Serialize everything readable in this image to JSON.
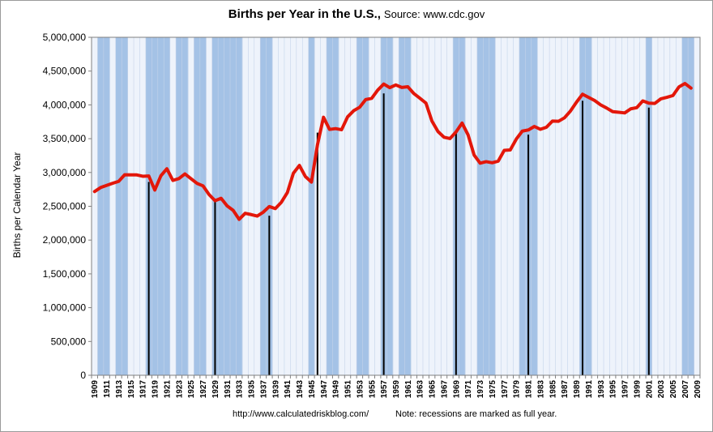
{
  "chart_data": {
    "type": "line",
    "title": "Births per Year in the U.S.,",
    "subtitle": "Source: www.cdc.gov",
    "ylabel": "Births per Calendar Year",
    "xlabel": "",
    "ylim": [
      0,
      5000000
    ],
    "yticks": [
      0,
      500000,
      1000000,
      1500000,
      2000000,
      2500000,
      3000000,
      3500000,
      4000000,
      4500000,
      5000000
    ],
    "ytick_labels": [
      "0",
      "500,000",
      "1,000,000",
      "1,500,000",
      "2,000,000",
      "2,500,000",
      "3,000,000",
      "3,500,000",
      "4,000,000",
      "4,500,000",
      "5,000,000"
    ],
    "x_range": [
      1909,
      2009
    ],
    "xticks": [
      "1909",
      "1911",
      "1913",
      "1915",
      "1917",
      "1919",
      "1921",
      "1923",
      "1925",
      "1927",
      "1929",
      "1931",
      "1933",
      "1935",
      "1937",
      "1939",
      "1941",
      "1943",
      "1945",
      "1947",
      "1949",
      "1951",
      "1953",
      "1955",
      "1957",
      "1959",
      "1961",
      "1963",
      "1965",
      "1967",
      "1969",
      "1971",
      "1973",
      "1975",
      "1977",
      "1979",
      "1981",
      "1983",
      "1985",
      "1987",
      "1989",
      "1991",
      "1993",
      "1995",
      "1997",
      "1999",
      "2001",
      "2003",
      "2005",
      "2007",
      "2009"
    ],
    "grid": "vertical",
    "legend": "none",
    "series": [
      {
        "color": "#e3170a",
        "x": [
          1909,
          1910,
          1911,
          1912,
          1913,
          1914,
          1915,
          1916,
          1917,
          1918,
          1919,
          1920,
          1921,
          1922,
          1923,
          1924,
          1925,
          1926,
          1927,
          1928,
          1929,
          1930,
          1931,
          1932,
          1933,
          1934,
          1935,
          1936,
          1937,
          1938,
          1939,
          1940,
          1941,
          1942,
          1943,
          1944,
          1945,
          1946,
          1947,
          1948,
          1949,
          1950,
          1951,
          1952,
          1953,
          1954,
          1955,
          1956,
          1957,
          1958,
          1959,
          1960,
          1961,
          1962,
          1963,
          1964,
          1965,
          1966,
          1967,
          1968,
          1969,
          1970,
          1971,
          1972,
          1973,
          1974,
          1975,
          1976,
          1977,
          1978,
          1979,
          1980,
          1981,
          1982,
          1983,
          1984,
          1985,
          1986,
          1987,
          1988,
          1989,
          1990,
          1991,
          1992,
          1993,
          1994,
          1995,
          1996,
          1997,
          1998,
          1999,
          2000,
          2001,
          2002,
          2003,
          2004,
          2005,
          2006,
          2007,
          2008
        ],
        "values": [
          2718000,
          2777000,
          2809000,
          2840000,
          2869000,
          2966000,
          2965000,
          2964000,
          2944000,
          2948000,
          2740000,
          2950000,
          3055000,
          2882000,
          2910000,
          2979000,
          2909000,
          2839000,
          2802000,
          2674000,
          2582000,
          2618000,
          2506000,
          2440000,
          2307000,
          2396000,
          2377000,
          2355000,
          2413000,
          2496000,
          2466000,
          2559000,
          2703000,
          2989000,
          3104000,
          2939000,
          2858000,
          3411000,
          3817000,
          3637000,
          3649000,
          3632000,
          3823000,
          3913000,
          3965000,
          4078000,
          4097000,
          4218000,
          4308000,
          4255000,
          4295000,
          4258000,
          4268000,
          4167000,
          4098000,
          4027000,
          3760000,
          3606000,
          3521000,
          3502000,
          3600000,
          3731000,
          3556000,
          3258000,
          3137000,
          3160000,
          3144000,
          3168000,
          3327000,
          3333000,
          3494000,
          3612000,
          3629000,
          3681000,
          3639000,
          3669000,
          3761000,
          3757000,
          3809000,
          3910000,
          4041000,
          4158000,
          4111000,
          4065000,
          4000000,
          3953000,
          3900000,
          3891000,
          3881000,
          3942000,
          3959000,
          4059000,
          4026000,
          4022000,
          4090000,
          4112000,
          4138000,
          4266000,
          4316000,
          4248000
        ]
      }
    ],
    "recession_years": [
      1910,
      1911,
      1913,
      1914,
      1918,
      1919,
      1920,
      1921,
      1923,
      1924,
      1926,
      1927,
      1929,
      1930,
      1931,
      1932,
      1933,
      1937,
      1938,
      1945,
      1948,
      1949,
      1953,
      1954,
      1957,
      1958,
      1960,
      1961,
      1969,
      1970,
      1973,
      1974,
      1975,
      1980,
      1981,
      1982,
      1990,
      1991,
      2001,
      2007,
      2008
    ],
    "recession_markers": [
      {
        "year": 1918,
        "value": 2860000
      },
      {
        "year": 1929,
        "value": 2580000
      },
      {
        "year": 1938,
        "value": 2360000
      },
      {
        "year": 1946,
        "value": 3590000
      },
      {
        "year": 1957,
        "value": 4170000
      },
      {
        "year": 1969,
        "value": 3590000
      },
      {
        "year": 1981,
        "value": 3560000
      },
      {
        "year": 1990,
        "value": 4060000
      },
      {
        "year": 2001,
        "value": 3960000
      }
    ],
    "colors": {
      "recession_band": "#a4c2e6",
      "plot_background": "#eef3fb",
      "grid": "#c4d3ea",
      "line": "#e3170a",
      "marker": "#000000"
    }
  },
  "footer": {
    "url": "http://www.calculatedriskblog.com/",
    "note": "Note:  recessions are marked as full year."
  }
}
